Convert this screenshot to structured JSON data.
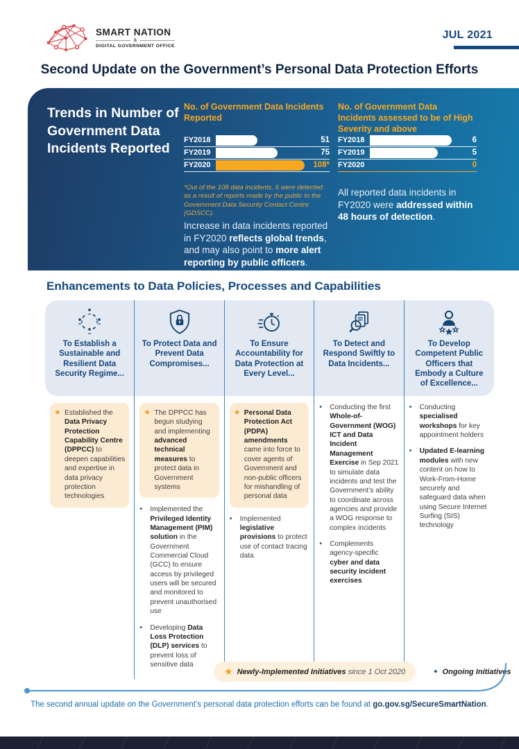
{
  "header": {
    "logo": {
      "line1": "SMART NATION",
      "ampersand": "&",
      "line2": "DIGITAL GOVERNMENT OFFICE"
    },
    "issue_date": "JUL 2021"
  },
  "title": {
    "prefix": "Second Update on the Government’s ",
    "emphasis": "Personal Data Protection Efforts"
  },
  "trends": {
    "heading": "Trends in Number of Government Data Incidents Reported",
    "footnote": "*Out of the 108 data incidents, 6 were detected as a result of reports made by the public to the Government Data Security Contact Centre (GDSCC).",
    "insight_left": [
      [
        "Increase in data incidents reported in FY2020 ",
        0
      ],
      [
        "reflects global trends",
        1
      ],
      [
        ", and may also point to ",
        0
      ],
      [
        "more alert reporting by public officers",
        1
      ],
      [
        ".",
        0
      ]
    ],
    "insight_right": [
      [
        "All reported data incidents in FY2020 were ",
        0
      ],
      [
        "addressed within 48 hours of detection",
        1
      ],
      [
        ".",
        0
      ]
    ]
  },
  "chart_data": [
    {
      "type": "bar",
      "orientation": "horizontal",
      "title": "No. of Government Data Incidents Reported",
      "categories": [
        "FY2018",
        "FY2019",
        "FY2020"
      ],
      "values": [
        51,
        75,
        108
      ],
      "value_labels": [
        "51",
        "75",
        "108*"
      ],
      "xlim": [
        0,
        108
      ],
      "highlight_index": 2,
      "grid": false,
      "legend_position": "none",
      "colors": {
        "bar": "#ffffff",
        "bar_highlight": "#f7a823",
        "value": "#ffffff",
        "value_highlight": "#f7a823",
        "rule": "rgba(255,255,255,0.9)",
        "rule_highlight": "rgba(255,255,255,0.9)"
      }
    },
    {
      "type": "bar",
      "orientation": "horizontal",
      "title": "No. of Government Data Incidents assessed to be of High Severity and above",
      "categories": [
        "FY2018",
        "FY2019",
        "FY2020"
      ],
      "values": [
        6,
        5,
        0
      ],
      "value_labels": [
        "6",
        "5",
        "0"
      ],
      "xlim": [
        0,
        6
      ],
      "highlight_index": 2,
      "grid": false,
      "legend_position": "none",
      "colors": {
        "bar": "#ffffff",
        "bar_highlight": "#f7a823",
        "value": "#ffffff",
        "value_highlight": "#f7a823",
        "rule": "rgba(255,255,255,0.9)",
        "rule_highlight": "#f7a823"
      }
    }
  ],
  "enhancements": {
    "heading": "Enhancements to Data Policies, Processes and Capabilities",
    "columns": [
      {
        "icon": "community-icon",
        "title": "To Establish a Sustainable and Resilient Data Security Regime...",
        "items": [
          {
            "bullet": "star",
            "segments": [
              [
                "Established the ",
                0
              ],
              [
                "Data Privacy Protection Capability Centre (DPPCC)",
                1
              ],
              [
                " to deepen capabilities and expertise in data privacy protection technologies",
                0
              ]
            ]
          }
        ]
      },
      {
        "icon": "shield-lock-icon",
        "title": "To Protect Data and Prevent Data Compromises...",
        "items": [
          {
            "bullet": "star",
            "segments": [
              [
                "The DPPCC has begun studying and implementing ",
                0
              ],
              [
                "advanced technical measures",
                1
              ],
              [
                " to protect data in Government systems",
                0
              ]
            ]
          },
          {
            "bullet": "dot",
            "segments": [
              [
                "Implemented the ",
                0
              ],
              [
                "Privileged Identity Management (PIM) solution",
                1
              ],
              [
                " in the Government Commercial Cloud (GCC) to ensure access by privileged users will be secured and monitored to prevent unauthorised use",
                0
              ]
            ]
          },
          {
            "bullet": "dot",
            "segments": [
              [
                "Developing ",
                0
              ],
              [
                "Data Loss Protection (DLP) services",
                1
              ],
              [
                " to prevent loss of sensitive data",
                0
              ]
            ]
          }
        ]
      },
      {
        "icon": "stopwatch-icon",
        "title": "To Ensure Accountability for Data Protection at Every Level...",
        "items": [
          {
            "bullet": "star",
            "segments": [
              [
                "Personal Data Protection Act (PDPA) amendments",
                1
              ],
              [
                " came into force to cover agents of Government and non-public officers for mishandling of personal data",
                0
              ]
            ]
          },
          {
            "bullet": "dot",
            "segments": [
              [
                "Implemented ",
                0
              ],
              [
                "legislative provisions",
                1
              ],
              [
                " to protect use of contact tracing data",
                0
              ]
            ]
          }
        ]
      },
      {
        "icon": "magnifier-document-icon",
        "title": "To Detect and Respond Swiftly to Data Incidents...",
        "items": [
          {
            "bullet": "dot",
            "segments": [
              [
                "Conducting the first ",
                0
              ],
              [
                "Whole-of-Government (WOG) ICT and Data Incident Management Exercise",
                1
              ],
              [
                " in Sep 2021 to simulate data incidents and test the Government’s ability to coordinate across agencies and provide a WOG response to complex incidents",
                0
              ]
            ]
          },
          {
            "bullet": "dot",
            "segments": [
              [
                "Complements agency-specific ",
                0
              ],
              [
                "cyber and data security incident exercises",
                1
              ]
            ]
          }
        ]
      },
      {
        "icon": "person-stars-icon",
        "title": "To Develop Competent Public Officers that Embody a Culture of Excellence...",
        "items": [
          {
            "bullet": "dot",
            "segments": [
              [
                "Conducting ",
                0
              ],
              [
                "specialised workshops",
                1
              ],
              [
                " for key appointment holders",
                0
              ]
            ]
          },
          {
            "bullet": "dot",
            "segments": [
              [
                "Updated E-learning modules",
                1
              ],
              [
                " with new content on how to Work-From-Home securely and safeguard data when using Secure Internet Surfing (SIS) technology",
                0
              ]
            ]
          }
        ]
      }
    ]
  },
  "legend": {
    "star_bold": "Newly-Implemented Initiatives",
    "star_rest": " since 1 Oct 2020",
    "dot_label": "Ongoing Initiatives"
  },
  "footer": {
    "prefix": "The second annual update on the Government’s personal data protection efforts can be found at ",
    "link": "go.gov.sg/SecureSmartNation",
    "suffix": "."
  },
  "colors": {
    "brand_navy": "#17477e",
    "panel_gradient_start": "#1d3b64",
    "panel_gradient_end": "#167cae",
    "accent_orange": "#f7a823",
    "peach_background": "#fcebd3",
    "light_panel": "#e3e9f2",
    "divider_blue": "#3585c6"
  }
}
